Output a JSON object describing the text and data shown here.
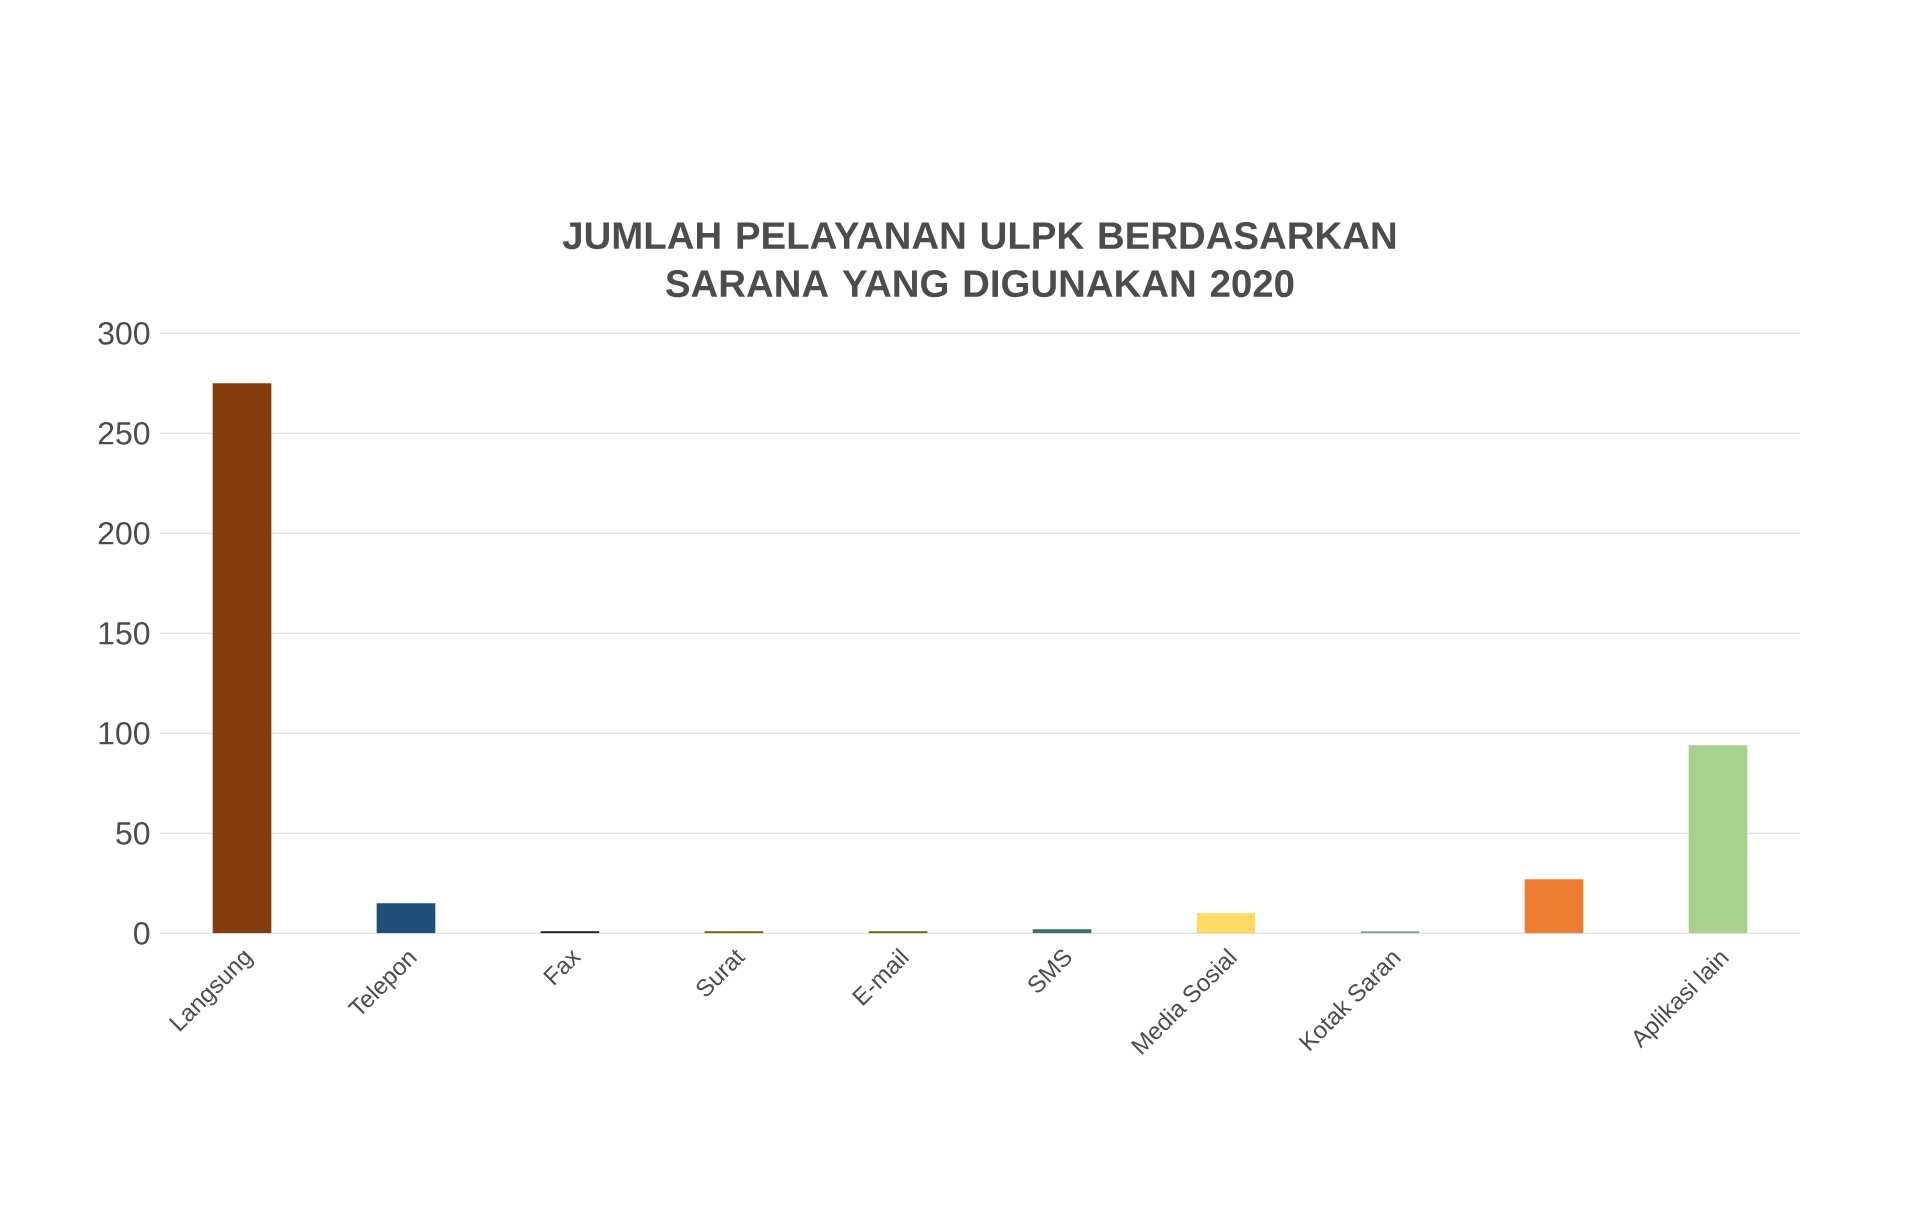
{
  "chart_data": {
    "type": "bar",
    "title": "JUMLAH PELAYANAN ULPK BERDASARKAN SARANA YANG DIGUNAKAN 2020",
    "categories": [
      "Langsung",
      "Telepon",
      "Fax",
      "Surat",
      "E-mail",
      "SMS",
      "Media Sosial",
      "Kotak Saran",
      null,
      "Aplikasi lain"
    ],
    "values": [
      275,
      15,
      1,
      1,
      1,
      2,
      10,
      1,
      27,
      94
    ],
    "colors": [
      "#843c0c",
      "#1f4e79",
      "#1a1a1a",
      "#7f6000",
      "#5a6b00",
      "#3f6f5f",
      "#ffd966",
      "#7f9cbf",
      "#ed7d31",
      "#a9d18e"
    ],
    "ylim": [
      0,
      300
    ],
    "yticks": [
      0,
      50,
      100,
      150,
      200,
      250,
      300
    ],
    "grid": "y"
  }
}
